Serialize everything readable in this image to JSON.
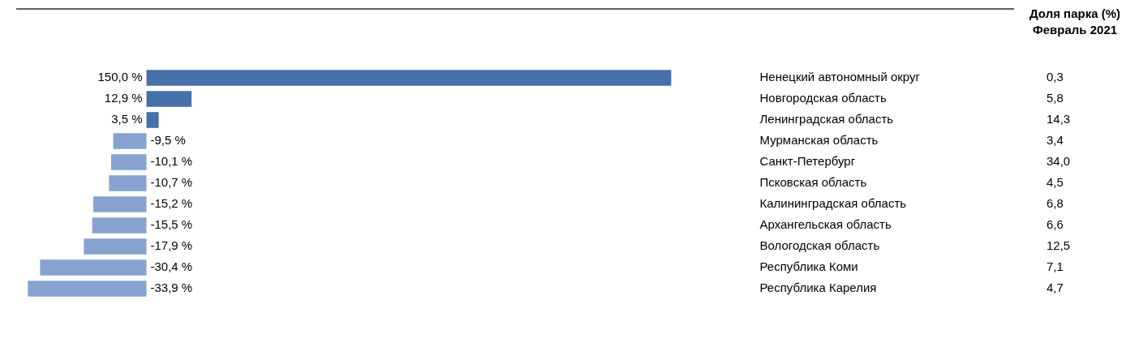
{
  "chart_data": {
    "type": "bar",
    "orientation": "horizontal",
    "categories": [
      "Ненецкий автономный округ",
      "Новгородская область",
      "Ленинградская область",
      "Мурманская область",
      "Санкт-Петербург",
      "Псковская область",
      "Калининградская область",
      "Архангельская область",
      "Вологодская область",
      "Республика Коми",
      "Республика Карелия"
    ],
    "values": [
      150.0,
      12.9,
      3.5,
      -9.5,
      -10.1,
      -10.7,
      -15.2,
      -15.5,
      -17.9,
      -30.4,
      -33.9
    ],
    "colors": [
      "#4770a8",
      "#4770a8",
      "#4770a8",
      "#87a2cf",
      "#87a2cf",
      "#87a2cf",
      "#87a2cf",
      "#87a2cf",
      "#87a2cf",
      "#87a2cf",
      "#87a2cf"
    ],
    "value_labels": [
      "150,0 %",
      "12,9 %",
      "3,5 %",
      "-9,5 %",
      "-10,1 %",
      "-10,7 %",
      "-15,2 %",
      "-15,5 %",
      "-17,9 %",
      "-30,4 %",
      "-33,9 %"
    ],
    "grid": false,
    "legend": false,
    "annotations": [
      "Доля парка (%)",
      "Февраль 2021",
      "0,3",
      "5,8",
      "14,3",
      "3,4",
      "34,0",
      "4,5",
      "6,8",
      "6,6",
      "12,5",
      "7,1",
      "4,7"
    ]
  }
}
